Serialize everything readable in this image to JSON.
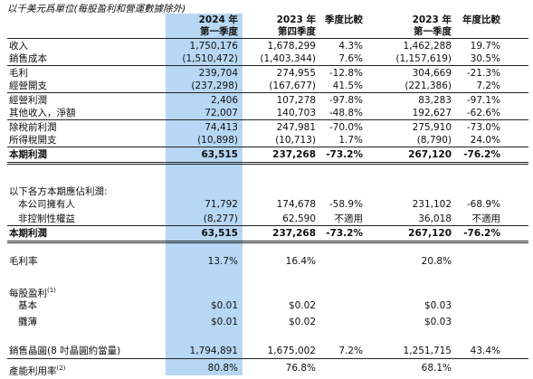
{
  "caption": "以千美元爲單位(每股盈利和營運數據除外)",
  "headers": {
    "c1_l1": "2024 年",
    "c1_l2": "第一季度",
    "c2_l1": "2023 年",
    "c2_l2": "第四季度",
    "c3": "季度比較",
    "c4_l1": "2023 年",
    "c4_l2": "第一季度",
    "c5": "年度比較"
  },
  "rows": [
    {
      "label": "收入",
      "c1": "1,750,176",
      "c2": "1,678,299",
      "c3": "4.3%",
      "c4": "1,462,288",
      "c5": "19.7%"
    },
    {
      "label": "銷售成本",
      "c1": "(1,510,472)",
      "c2": "(1,403,344)",
      "c3": "7.6%",
      "c4": "(1,157,619)",
      "c5": "30.5%"
    },
    {
      "label": "毛利",
      "c1": "239,704",
      "c2": "274,955",
      "c3": "-12.8%",
      "c4": "304,669",
      "c5": "-21.3%"
    },
    {
      "label": "經營開支",
      "c1": "(237,298)",
      "c2": "(167,677)",
      "c3": "41.5%",
      "c4": "(221,386)",
      "c5": "7.2%"
    },
    {
      "label": "經營利潤",
      "c1": "2,406",
      "c2": "107,278",
      "c3": "-97.8%",
      "c4": "83,283",
      "c5": "-97.1%"
    },
    {
      "label": "其他收入，淨額",
      "c1": "72,007",
      "c2": "140,703",
      "c3": "-48.8%",
      "c4": "192,627",
      "c5": "-62.6%"
    },
    {
      "label": "除稅前利潤",
      "c1": "74,413",
      "c2": "247,981",
      "c3": "-70.0%",
      "c4": "275,910",
      "c5": "-73.0%"
    },
    {
      "label": "所得稅開支",
      "c1": "(10,898)",
      "c2": "(10,713)",
      "c3": "1.7%",
      "c4": "(8,790)",
      "c5": "24.0%"
    },
    {
      "label": "本期利潤",
      "c1": "63,515",
      "c2": "237,268",
      "c3": "-73.2%",
      "c4": "267,120",
      "c5": "-76.2%"
    },
    {
      "label": "以下各方本期應佔利潤:",
      "c1": "",
      "c2": "",
      "c3": "",
      "c4": "",
      "c5": ""
    },
    {
      "label": "本公司擁有人",
      "c1": "71,792",
      "c2": "174,678",
      "c3": "-58.9%",
      "c4": "231,102",
      "c5": "-68.9%"
    },
    {
      "label": "非控制性權益",
      "c1": "(8,277)",
      "c2": "62,590",
      "c3": "不適用",
      "c4": "36,018",
      "c5": "不適用"
    },
    {
      "label": "本期利潤",
      "c1": "63,515",
      "c2": "237,268",
      "c3": "-73.2%",
      "c4": "267,120",
      "c5": "-76.2%"
    },
    {
      "label": "毛利率",
      "c1": "13.7%",
      "c2": "16.4%",
      "c3": "",
      "c4": "20.8%",
      "c5": ""
    },
    {
      "label": "每股盈利",
      "c1": "",
      "c2": "",
      "c3": "",
      "c4": "",
      "c5": ""
    },
    {
      "label": "基本",
      "c1": "$0.01",
      "c2": "$0.02",
      "c3": "",
      "c4": "$0.03",
      "c5": ""
    },
    {
      "label": "攤薄",
      "c1": "$0.01",
      "c2": "$0.02",
      "c3": "",
      "c4": "$0.03",
      "c5": ""
    },
    {
      "label": "銷售晶圓(8 吋晶圓約當量)",
      "c1": "1,794,891",
      "c2": "1,675,002",
      "c3": "7.2%",
      "c4": "1,251,715",
      "c5": "43.4%"
    },
    {
      "label": "產能利用率",
      "c1": "80.8%",
      "c2": "76.8%",
      "c3": "",
      "c4": "68.1%",
      "c5": ""
    }
  ],
  "footnotes": {
    "eps": "(1)",
    "util": "(2)"
  }
}
